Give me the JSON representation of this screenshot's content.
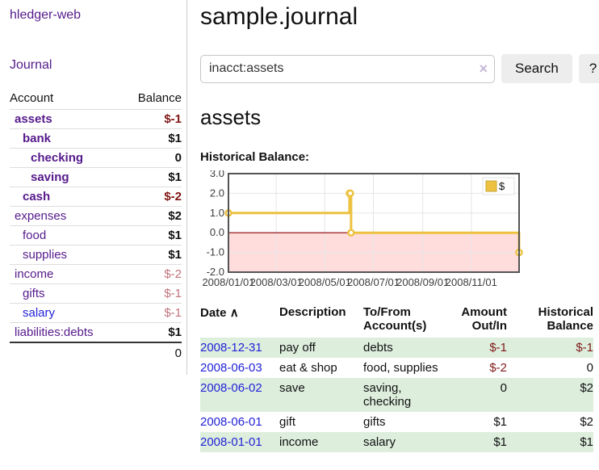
{
  "app": {
    "title": "hledger-web"
  },
  "sidebar": {
    "journal_link": "Journal",
    "table": {
      "headers": [
        "Account",
        "Balance"
      ],
      "rows": [
        {
          "account": "assets",
          "balance": "$-1",
          "indent": 0,
          "bold": true,
          "balance_style": "neg-strong",
          "link_style": "visited"
        },
        {
          "account": "bank",
          "balance": "$1",
          "indent": 1,
          "bold": true,
          "balance_style": "normal",
          "link_style": "visited"
        },
        {
          "account": "checking",
          "balance": "0",
          "indent": 2,
          "bold": true,
          "balance_style": "normal",
          "link_style": "visited"
        },
        {
          "account": "saving",
          "balance": "$1",
          "indent": 2,
          "bold": true,
          "balance_style": "normal",
          "link_style": "visited"
        },
        {
          "account": "cash",
          "balance": "$-2",
          "indent": 1,
          "bold": true,
          "balance_style": "neg-strong",
          "link_style": "visited"
        },
        {
          "account": "expenses",
          "balance": "$2",
          "indent": 0,
          "bold": false,
          "balance_style": "normal",
          "link_style": "visited"
        },
        {
          "account": "food",
          "balance": "$1",
          "indent": 1,
          "bold": false,
          "balance_style": "normal",
          "link_style": "visited"
        },
        {
          "account": "supplies",
          "balance": "$1",
          "indent": 1,
          "bold": false,
          "balance_style": "normal",
          "link_style": "visited"
        },
        {
          "account": "income",
          "balance": "$-2",
          "indent": 0,
          "bold": false,
          "balance_style": "neg-muted",
          "link_style": "visited"
        },
        {
          "account": "gifts",
          "balance": "$-1",
          "indent": 1,
          "bold": false,
          "balance_style": "neg-muted",
          "link_style": "visited"
        },
        {
          "account": "salary",
          "balance": "$-1",
          "indent": 1,
          "bold": false,
          "balance_style": "neg-muted",
          "link_style": "unvisited"
        },
        {
          "account": "liabilities:debts",
          "balance": "$1",
          "indent": 0,
          "bold": false,
          "balance_style": "normal",
          "link_style": "visited"
        }
      ],
      "total": "0"
    }
  },
  "header": {
    "title": "sample.journal"
  },
  "search": {
    "value": "inacct:assets",
    "clear_icon": "×",
    "button_label": "Search",
    "help_label": "?"
  },
  "main": {
    "account_title": "assets",
    "chart_label": "Historical Balance:"
  },
  "chart_data": {
    "type": "line",
    "steps": true,
    "title": "Historical Balance",
    "series": [
      {
        "name": "$",
        "color": "#edc240",
        "points": [
          [
            "2008-01-01",
            1
          ],
          [
            "2008-06-01",
            2
          ],
          [
            "2008-06-02",
            2
          ],
          [
            "2008-06-03",
            0
          ],
          [
            "2008-12-31",
            -1
          ]
        ]
      }
    ],
    "xlim": [
      "2008-01-01",
      "2008-12-31"
    ],
    "ylim": [
      -2,
      3
    ],
    "y_ticks": [
      3,
      2,
      1,
      0,
      -1,
      -2
    ],
    "x_tick_labels": [
      "2008/01/01",
      "2008/03/01",
      "2008/05/01",
      "2008/07/01",
      "2008/09/01",
      "2008/11/01"
    ],
    "grid": true,
    "legend_position": "top-right",
    "negative_region_color": "#ffdddd",
    "zero_line_color": "#8b0000",
    "border_color": "#545454",
    "grid_color": "#e5e5e5"
  },
  "register": {
    "headers": [
      "Date",
      "Description",
      "To/From Account(s)",
      "Amount Out/In",
      "Historical Balance"
    ],
    "sort_icon": "∧",
    "rows": [
      {
        "date": "2008-12-31",
        "description": "pay off",
        "accounts": "debts",
        "amount": "$-1",
        "balance": "$-1"
      },
      {
        "date": "2008-06-03",
        "description": "eat & shop",
        "accounts": "food, supplies",
        "amount": "$-2",
        "balance": "0"
      },
      {
        "date": "2008-06-02",
        "description": "save",
        "accounts": "saving, checking",
        "amount": "0",
        "balance": "$2"
      },
      {
        "date": "2008-06-01",
        "description": "gift",
        "accounts": "gifts",
        "amount": "$1",
        "balance": "$2"
      },
      {
        "date": "2008-01-01",
        "description": "income",
        "accounts": "salary",
        "amount": "$1",
        "balance": "$1"
      }
    ]
  },
  "colors": {
    "link_purple": "#551a8b",
    "link_blue": "#2323d8",
    "negative_strong": "#801515",
    "negative_muted": "#c0737c",
    "row_stripe_green": "#ddeedd",
    "series_gold": "#edc240"
  }
}
